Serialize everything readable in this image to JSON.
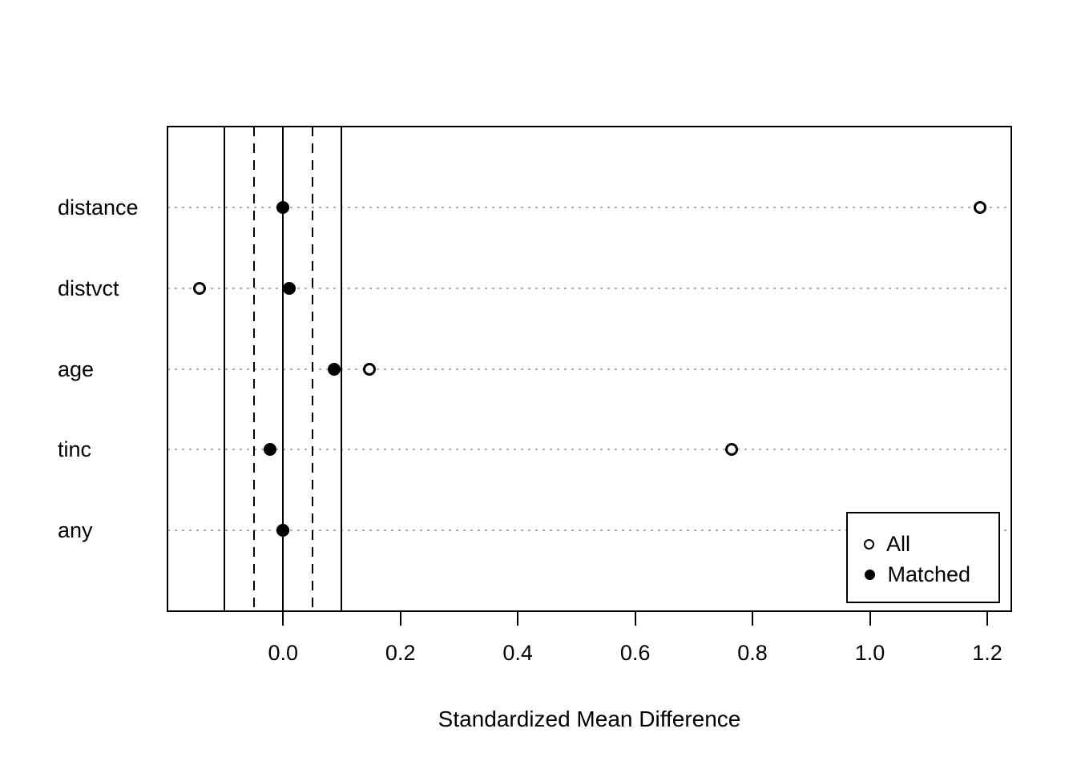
{
  "chart_data": {
    "type": "scatter",
    "subtype": "love-plot-dot-chart",
    "title": "",
    "xlabel": "Standardized Mean Difference",
    "ylabel": "",
    "categories": [
      "distance",
      "distvct",
      "age",
      "tinc",
      "any"
    ],
    "series": [
      {
        "name": "All",
        "marker": "open-circle",
        "values": [
          1.188,
          -0.143,
          0.147,
          0.765,
          0.0
        ]
      },
      {
        "name": "Matched",
        "marker": "filled-circle",
        "values": [
          0.0,
          0.01,
          0.087,
          -0.022,
          0.0
        ]
      }
    ],
    "xlim": [
      -0.197,
      1.241
    ],
    "x_ticks": [
      0.0,
      0.2,
      0.4,
      0.6,
      0.8,
      1.0,
      1.2
    ],
    "x_tick_labels": [
      "0.0",
      "0.2",
      "0.4",
      "0.6",
      "0.8",
      "1.0",
      "1.2"
    ],
    "reference_lines": [
      {
        "x": -0.1,
        "style": "solid"
      },
      {
        "x": -0.05,
        "style": "dashed"
      },
      {
        "x": 0.0,
        "style": "solid"
      },
      {
        "x": 0.05,
        "style": "dashed"
      },
      {
        "x": 0.1,
        "style": "solid"
      }
    ],
    "grid": "horizontal-dotted",
    "legend": {
      "position": "bottom-right",
      "items": [
        {
          "label": "All",
          "marker": "open-circle"
        },
        {
          "label": "Matched",
          "marker": "filled-circle"
        }
      ]
    },
    "colors": {
      "foreground": "#000000",
      "background": "#ffffff",
      "gridline": "#ababab"
    }
  }
}
